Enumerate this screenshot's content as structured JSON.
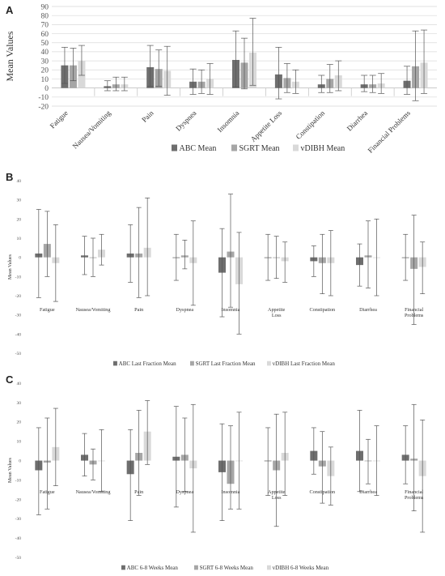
{
  "colors": {
    "abc": "#6e6e6e",
    "sgrt": "#a6a6a6",
    "vdibh": "#d9d9d9",
    "error": "#555555",
    "grid": "#d9d9d9"
  },
  "chart_data": [
    {
      "panel": "A",
      "type": "bar",
      "ylabel": "Mean Values",
      "ylim": [
        -20,
        90
      ],
      "yticks": [
        -20,
        -10,
        0,
        10,
        20,
        30,
        40,
        50,
        60,
        70,
        80,
        90
      ],
      "grid": true,
      "legend_position": "bottom",
      "categories": [
        "Fatigue",
        "Nausea/Vomiting",
        "Pain",
        "Dyspnea",
        "Insomnia",
        "Appetite Loss",
        "Constipation",
        "Diarrhea",
        "Financial Problems"
      ],
      "series": [
        {
          "name": "ABC Mean",
          "values": [
            25,
            2,
            23,
            7,
            31,
            15,
            4,
            4,
            8
          ],
          "lo": [
            5,
            -3,
            2,
            -7,
            1,
            -12,
            -5,
            -4,
            -7
          ],
          "hi": [
            45,
            8,
            47,
            21,
            63,
            45,
            14,
            14,
            24
          ]
        },
        {
          "name": "SGRT Mean",
          "values": [
            25,
            4,
            21,
            7,
            28,
            11,
            10,
            4,
            24
          ],
          "lo": [
            8,
            -3,
            2,
            -6,
            -1,
            -5,
            -5,
            -5,
            -14
          ],
          "hi": [
            44,
            12,
            42,
            20,
            55,
            27,
            26,
            14,
            63
          ]
        },
        {
          "name": "vDIBH Mean",
          "values": [
            30,
            4,
            19,
            10,
            39,
            7,
            14,
            5,
            28
          ],
          "lo": [
            14,
            -3,
            -8,
            -7,
            3,
            -6,
            -3,
            -6,
            -6
          ],
          "hi": [
            47,
            12,
            46,
            27,
            77,
            20,
            30,
            16,
            64
          ]
        }
      ]
    },
    {
      "panel": "B",
      "type": "bar",
      "ylabel": "Mean Values",
      "ylim": [
        -50,
        40
      ],
      "yticks": [
        -50,
        -40,
        -30,
        -20,
        -10,
        0,
        10,
        20,
        30,
        40
      ],
      "grid": false,
      "legend_position": "bottom",
      "categories": [
        "Fatigue",
        "Nausea/Vomiting",
        "Pain",
        "Dyspnea",
        "Insomnia",
        "Appetite Loss",
        "Constipation",
        "Diarrhea",
        "Financial Problems"
      ],
      "series": [
        {
          "name": "ABC Last Fraction Mean",
          "values": [
            2,
            1,
            2,
            0,
            -8,
            0,
            -2,
            -4,
            0
          ],
          "lo": [
            -21,
            -9,
            -13,
            -12,
            -31,
            -12,
            -10,
            -15,
            -12
          ],
          "hi": [
            25,
            11,
            17,
            12,
            15,
            12,
            6,
            7,
            12
          ]
        },
        {
          "name": "SGRT Last Fraction Mean",
          "values": [
            7,
            0,
            2,
            1,
            3,
            0,
            -3,
            1,
            -6
          ],
          "lo": [
            -10,
            -10,
            -21,
            -6,
            -26,
            -11,
            -19,
            -16,
            -35
          ],
          "hi": [
            24,
            10,
            26,
            9,
            33,
            11,
            12,
            19,
            22
          ]
        },
        {
          "name": "vDIBH Last Fraction Mean",
          "values": [
            -3,
            4,
            5,
            -3,
            -14,
            -2,
            -3,
            0,
            -5
          ],
          "lo": [
            -23,
            -4,
            -20,
            -25,
            -40,
            -13,
            -20,
            -20,
            -19
          ],
          "hi": [
            17,
            12,
            31,
            19,
            13,
            8,
            14,
            20,
            8
          ]
        }
      ]
    },
    {
      "panel": "C",
      "type": "bar",
      "ylabel": "Mean Values",
      "ylim": [
        -50,
        40
      ],
      "yticks": [
        -50,
        -40,
        -30,
        -20,
        -10,
        0,
        10,
        20,
        30,
        40
      ],
      "grid": false,
      "legend_position": "bottom",
      "categories": [
        "Fatigue",
        "Nausea/Vomiting",
        "Pain",
        "Dyspnea",
        "Insomnia",
        "Appetite Loss",
        "Constipation",
        "Diarrhea",
        "Financial Problems"
      ],
      "series": [
        {
          "name": "ABC 6-8 Weeks Mean",
          "values": [
            -5,
            3,
            -7,
            2,
            -6,
            0,
            5,
            5,
            3
          ],
          "lo": [
            -28,
            -8,
            -31,
            -24,
            -31,
            -18,
            -7,
            -16,
            -12
          ],
          "hi": [
            17,
            14,
            16,
            28,
            19,
            17,
            17,
            26,
            18
          ]
        },
        {
          "name": "SGRT 6-8 Weeks Mean",
          "values": [
            -1,
            -2,
            4,
            3,
            -12,
            -5,
            -3,
            0,
            1
          ],
          "lo": [
            -25,
            -10,
            -18,
            -16,
            -25,
            -34,
            -22,
            -12,
            -26
          ],
          "hi": [
            22,
            6,
            26,
            22,
            18,
            24,
            15,
            11,
            29
          ]
        },
        {
          "name": "vDIBH 6-8 Weeks Mean",
          "values": [
            7,
            0,
            15,
            -4,
            0,
            4,
            -8,
            0,
            -8
          ],
          "lo": [
            -13,
            -16,
            -2,
            -37,
            -25,
            -18,
            -23,
            -18,
            -37
          ],
          "hi": [
            27,
            16,
            31,
            29,
            25,
            25,
            7,
            18,
            21
          ]
        }
      ]
    }
  ]
}
